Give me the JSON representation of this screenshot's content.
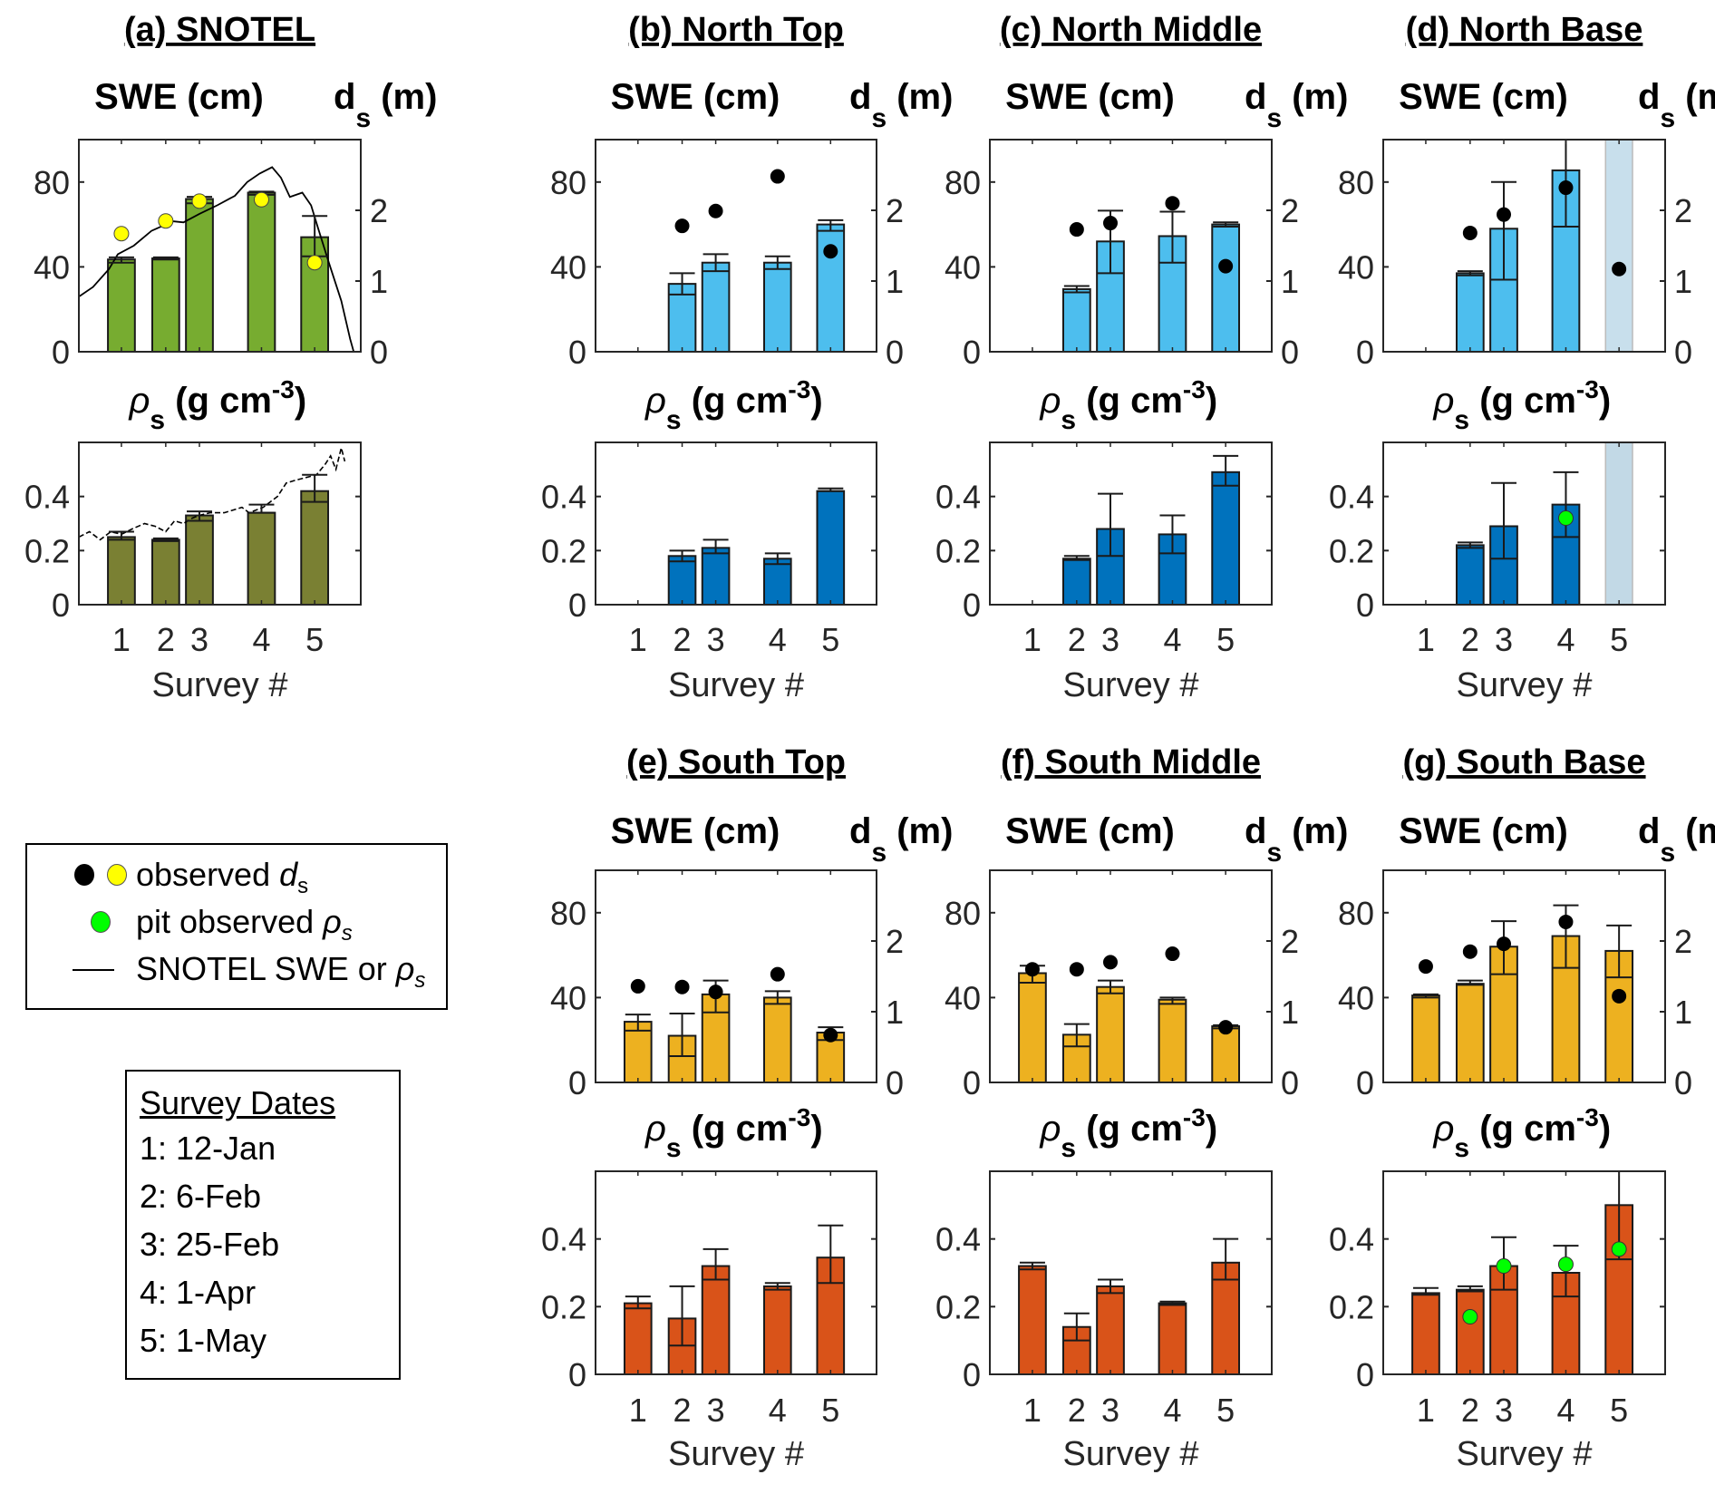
{
  "figure": {
    "x_axis_label": "Survey #",
    "swe_label": "SWE (cm)",
    "ds_label_main": "d",
    "ds_label_sub": "s",
    "ds_label_unit": "(m)",
    "rho_label_main": "ρ",
    "rho_label_sub": "s",
    "rho_label_unit": "(g cm",
    "rho_label_sup": "-3",
    "rho_label_close": ")"
  },
  "legend": {
    "items": [
      {
        "label_text": "observed ",
        "label_italic": "d",
        "label_sub": "s",
        "markers": [
          "#000000",
          "#FFFF00"
        ]
      },
      {
        "label_text": "pit observed ",
        "label_italic": "ρ",
        "label_sub": "s",
        "markers": [
          "#00FF00"
        ]
      },
      {
        "label_text": "SNOTEL SWE or ",
        "label_italic": "ρ",
        "label_sub": "s",
        "markers": [
          "line"
        ]
      }
    ]
  },
  "survey_dates": {
    "title": "Survey Dates",
    "items": [
      "1: 12-Jan",
      "2: 6-Feb",
      "3: 25-Feb",
      "4: 1-Apr",
      "5: 1-May"
    ]
  },
  "colors": {
    "snotel_swe": "#77AC30",
    "snotel_rho": "#7A8033",
    "north_swe": "#4DBEEE",
    "north_rho": "#0072BD",
    "south_swe": "#EDB120",
    "south_rho": "#D95319",
    "snotel_ds": "#FFFF00",
    "site_ds": "#000000",
    "pit_rho": "#00FF00",
    "missing_shade": "#C8DFEC"
  },
  "chart_data": [
    {
      "id": "a",
      "type": "bar",
      "title": "(a) SNOTEL",
      "group": "snotel",
      "x_unit": "day of year",
      "xlim": [
        -12,
        147
      ],
      "categories": [
        "1",
        "2",
        "3",
        "4",
        "5"
      ],
      "survey_day": [
        12,
        37,
        56,
        91,
        121
      ],
      "swe": {
        "ylim": [
          0,
          100
        ],
        "ticks": [
          0,
          40,
          80
        ],
        "values": [
          43.5,
          44,
          72,
          75,
          54
        ],
        "err": [
          [
            42,
            44.5
          ],
          [
            43.5,
            44.5
          ],
          [
            70,
            73
          ],
          [
            74,
            75.5
          ],
          [
            45,
            64
          ]
        ]
      },
      "ds": {
        "ylim": [
          0,
          3
        ],
        "ticks": [
          0,
          1,
          2
        ],
        "values": [
          1.67,
          1.85,
          2.13,
          2.15,
          1.26
        ]
      },
      "rho": {
        "ylim": [
          0,
          0.6
        ],
        "ticks": [
          0,
          0.2,
          0.4
        ],
        "values": [
          0.25,
          0.24,
          0.33,
          0.34,
          0.42
        ],
        "err": [
          [
            0.24,
            0.27
          ],
          [
            0.235,
            0.245
          ],
          [
            0.31,
            0.345
          ],
          [
            0.34,
            0.37
          ],
          [
            0.38,
            0.48
          ]
        ]
      },
      "snotel_swe_line": {
        "x": [
          -12,
          -4,
          5,
          10,
          19,
          29,
          41,
          47,
          56,
          66,
          76,
          83,
          90,
          97,
          102,
          107,
          114,
          119,
          123,
          129,
          136,
          141,
          143,
          147
        ],
        "y": [
          26,
          30.5,
          39,
          46,
          50,
          57,
          61.5,
          61,
          65,
          69,
          73.5,
          80,
          84,
          87,
          82,
          73,
          75,
          69,
          58,
          42,
          24,
          6,
          0,
          0
        ]
      },
      "snotel_rho_line": {
        "x": [
          -12,
          -6,
          0,
          6,
          12,
          18,
          25,
          31,
          37,
          42,
          47,
          52,
          56,
          62,
          70,
          75,
          80,
          84,
          88,
          92,
          96,
          100,
          105,
          110,
          116,
          122,
          127,
          130,
          133,
          136,
          138
        ],
        "y": [
          0.25,
          0.27,
          0.24,
          0.27,
          0.26,
          0.28,
          0.3,
          0.29,
          0.27,
          0.31,
          0.3,
          0.32,
          0.33,
          0.34,
          0.34,
          0.35,
          0.36,
          0.34,
          0.35,
          0.36,
          0.38,
          0.4,
          0.45,
          0.46,
          0.47,
          0.48,
          0.52,
          0.55,
          0.5,
          0.58,
          0.53
        ]
      }
    },
    {
      "id": "b",
      "type": "bar",
      "title": "(b) North Top",
      "group": "north",
      "categories": [
        "1",
        "2",
        "3",
        "4",
        "5"
      ],
      "swe": {
        "values": [
          null,
          32,
          42,
          42,
          60
        ],
        "err": [
          null,
          [
            27,
            37
          ],
          [
            38,
            46
          ],
          [
            39,
            45
          ],
          [
            57,
            62
          ]
        ]
      },
      "ds": {
        "values": [
          null,
          1.78,
          1.99,
          2.48,
          1.42
        ]
      },
      "rho": {
        "values": [
          null,
          0.18,
          0.21,
          0.17,
          0.42
        ],
        "err": [
          null,
          [
            0.16,
            0.2
          ],
          [
            0.19,
            0.24
          ],
          [
            0.15,
            0.19
          ],
          [
            0.42,
            0.43
          ]
        ]
      }
    },
    {
      "id": "c",
      "type": "bar",
      "title": "(c) North Middle",
      "group": "north",
      "categories": [
        "1",
        "2",
        "3",
        "4",
        "5"
      ],
      "swe": {
        "values": [
          null,
          29.5,
          52,
          54.5,
          60
        ],
        "err": [
          null,
          [
            28,
            31
          ],
          [
            37,
            66.5
          ],
          [
            42,
            66
          ],
          [
            59,
            61
          ]
        ]
      },
      "ds": {
        "values": [
          null,
          1.73,
          1.82,
          2.1,
          1.21
        ]
      },
      "rho": {
        "values": [
          null,
          0.17,
          0.28,
          0.26,
          0.49
        ],
        "err": [
          null,
          [
            0.165,
            0.18
          ],
          [
            0.18,
            0.41
          ],
          [
            0.19,
            0.33
          ],
          [
            0.44,
            0.55
          ]
        ]
      }
    },
    {
      "id": "d",
      "type": "bar",
      "title": "(d) North Base",
      "group": "north",
      "categories": [
        "1",
        "2",
        "3",
        "4",
        "5"
      ],
      "missing_survey": 5,
      "swe": {
        "values": [
          null,
          37,
          58,
          85.5,
          null
        ],
        "err": [
          null,
          [
            36,
            38
          ],
          [
            34,
            80
          ],
          [
            59,
            112
          ],
          null
        ]
      },
      "ds": {
        "values": [
          null,
          1.68,
          1.94,
          2.32,
          1.17
        ]
      },
      "rho": {
        "values": [
          null,
          0.22,
          0.29,
          0.37,
          null
        ],
        "err": [
          null,
          [
            0.21,
            0.23
          ],
          [
            0.17,
            0.45
          ],
          [
            0.25,
            0.49
          ],
          null
        ]
      },
      "pit_rho": [
        null,
        null,
        null,
        0.32,
        null
      ]
    },
    {
      "id": "e",
      "type": "bar",
      "title": "(e) South Top",
      "group": "south",
      "categories": [
        "1",
        "2",
        "3",
        "4",
        "5"
      ],
      "swe": {
        "values": [
          28.6,
          22,
          41.5,
          40,
          23.5
        ],
        "err": [
          [
            24.4,
            32
          ],
          [
            12.4,
            32.5
          ],
          [
            33,
            48
          ],
          [
            37,
            43
          ],
          [
            20,
            26
          ]
        ]
      },
      "ds": {
        "values": [
          1.36,
          1.35,
          1.28,
          1.53,
          0.67
        ]
      },
      "rho": {
        "values": [
          0.21,
          0.165,
          0.32,
          0.26,
          0.345
        ],
        "err": [
          [
            0.195,
            0.23
          ],
          [
            0.085,
            0.26
          ],
          [
            0.28,
            0.37
          ],
          [
            0.25,
            0.27
          ],
          [
            0.27,
            0.44
          ]
        ]
      }
    },
    {
      "id": "f",
      "type": "bar",
      "title": "(f) South Middle",
      "group": "south",
      "categories": [
        "1",
        "2",
        "3",
        "4",
        "5"
      ],
      "swe": {
        "values": [
          51.5,
          22.5,
          45,
          39,
          26.5
        ],
        "err": [
          [
            47,
            55
          ],
          [
            17,
            27.5
          ],
          [
            42,
            48
          ],
          [
            37,
            40
          ],
          [
            25.5,
            27
          ]
        ]
      },
      "ds": {
        "values": [
          1.6,
          1.6,
          1.7,
          1.82,
          0.78
        ]
      },
      "rho": {
        "values": [
          0.32,
          0.14,
          0.26,
          0.21,
          0.33
        ],
        "err": [
          [
            0.31,
            0.33
          ],
          [
            0.1,
            0.18
          ],
          [
            0.24,
            0.28
          ],
          [
            0.205,
            0.215
          ],
          [
            0.28,
            0.4
          ]
        ]
      }
    },
    {
      "id": "g",
      "type": "bar",
      "title": "(g) South Base",
      "group": "south",
      "categories": [
        "1",
        "2",
        "3",
        "4",
        "5"
      ],
      "swe": {
        "values": [
          41,
          46.5,
          64,
          69,
          62
        ],
        "err": [
          [
            40,
            41.5
          ],
          [
            46,
            48
          ],
          [
            51,
            76
          ],
          [
            54,
            83.5
          ],
          [
            49.5,
            74
          ]
        ]
      },
      "ds": {
        "values": [
          1.64,
          1.85,
          1.96,
          2.27,
          1.22
        ]
      },
      "rho": {
        "values": [
          0.24,
          0.25,
          0.32,
          0.3,
          0.5
        ],
        "err": [
          [
            0.235,
            0.255
          ],
          [
            0.245,
            0.26
          ],
          [
            0.25,
            0.405
          ],
          [
            0.23,
            0.38
          ],
          [
            0.34,
            0.66
          ]
        ]
      },
      "pit_rho": [
        null,
        0.17,
        0.32,
        0.325,
        0.37
      ]
    }
  ]
}
